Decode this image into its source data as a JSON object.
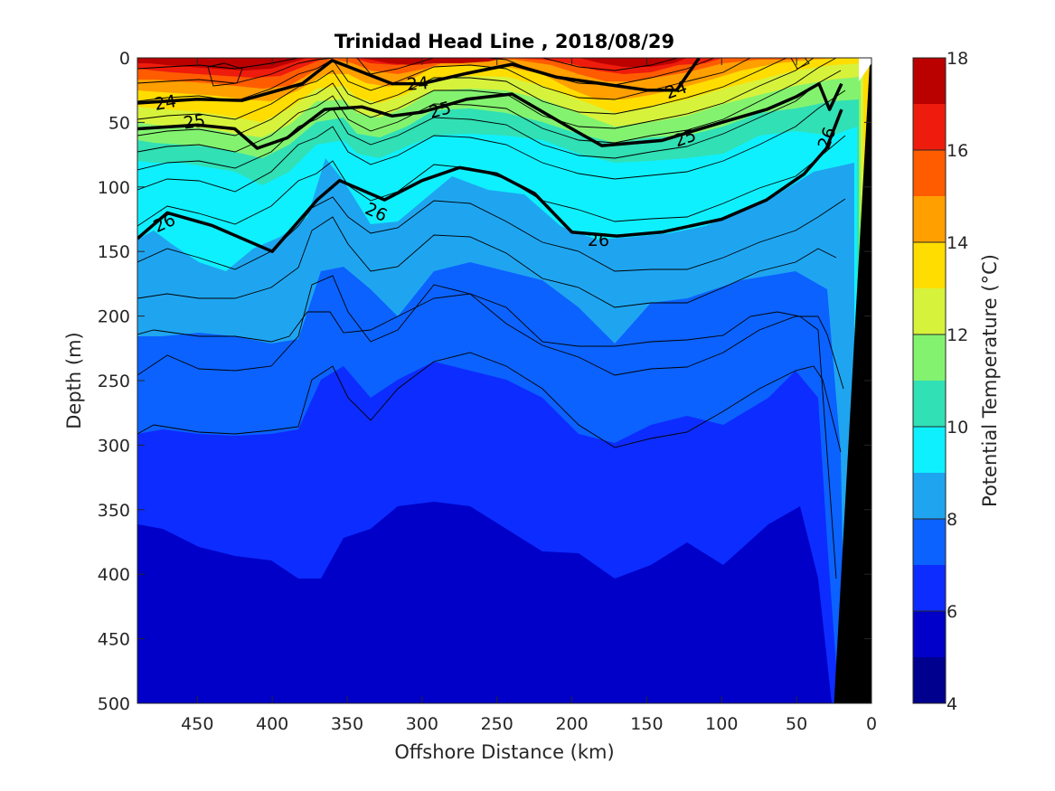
{
  "chart_data": {
    "type": "heatmap",
    "title": "Trinidad Head Line , 2018/08/29",
    "xlabel": "Offshore Distance (km)",
    "ylabel": "Depth (m)",
    "colorbar_label": "Potential Temperature (°C)",
    "xlim": [
      490,
      0
    ],
    "ylim": [
      0,
      500
    ],
    "x_ticks": [
      "450",
      "400",
      "350",
      "300",
      "250",
      "200",
      "150",
      "100",
      "50",
      "0"
    ],
    "y_ticks": [
      "0",
      "50",
      "100",
      "150",
      "200",
      "250",
      "300",
      "350",
      "400",
      "450",
      "500"
    ],
    "colorbar_ticks": [
      "4",
      "6",
      "8",
      "10",
      "12",
      "14",
      "16",
      "18"
    ],
    "colorbar_range": [
      4,
      18
    ],
    "colorbar_step": 1,
    "colormap": [
      "#00008f",
      "#0000c8",
      "#0d2cff",
      "#0b62ff",
      "#1fa5f0",
      "#0ff0ff",
      "#31e0b5",
      "#83f36f",
      "#d7f23b",
      "#ffdd00",
      "#ff9f00",
      "#ff5c00",
      "#ee1c0c",
      "#bb0000"
    ],
    "contour_labels": [
      "24",
      "25",
      "26"
    ],
    "sigma24_isoline": {
      "x": [
        490,
        450,
        420,
        380,
        360,
        320,
        300,
        270,
        240,
        210,
        180,
        150,
        130,
        115
      ],
      "depth": [
        35,
        32,
        33,
        20,
        2,
        20,
        20,
        12,
        5,
        15,
        20,
        25,
        25,
        0
      ]
    },
    "sigma25_isoline": {
      "x": [
        490,
        450,
        425,
        410,
        390,
        365,
        340,
        320,
        300,
        270,
        240,
        200,
        180,
        160,
        140,
        100,
        70,
        50,
        35,
        28,
        20
      ],
      "depth": [
        55,
        52,
        55,
        70,
        62,
        40,
        38,
        45,
        42,
        32,
        28,
        55,
        68,
        66,
        64,
        50,
        40,
        30,
        20,
        40,
        20
      ]
    },
    "sigma26_isoline": {
      "x": [
        490,
        470,
        440,
        400,
        370,
        355,
        345,
        325,
        300,
        275,
        250,
        225,
        200,
        170,
        140,
        100,
        70,
        45,
        30,
        20
      ],
      "depth": [
        140,
        120,
        130,
        150,
        110,
        95,
        100,
        110,
        95,
        85,
        90,
        105,
        135,
        138,
        135,
        125,
        110,
        90,
        70,
        40
      ]
    },
    "bottom_bathymetry": {
      "x": [
        25,
        1
      ],
      "depth": [
        500,
        0
      ]
    }
  }
}
